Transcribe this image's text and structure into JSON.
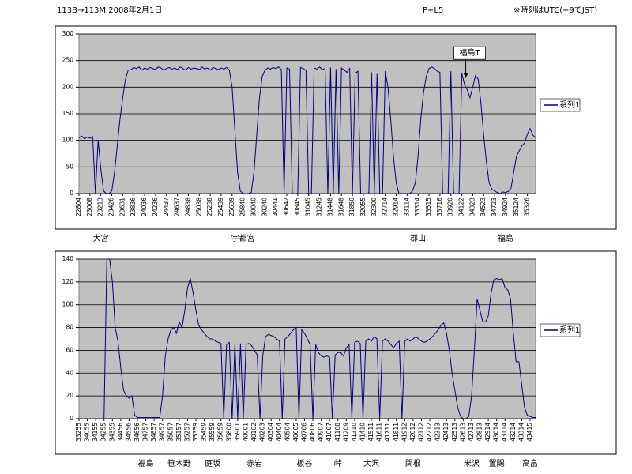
{
  "header": {
    "left": "113B→113M  2008年2月1日",
    "center": "P+L5",
    "right": "※時刻はUTC(+9でJST)"
  },
  "chart_data": [
    {
      "type": "line",
      "categories": [
        "22804",
        null,
        null,
        null,
        "23008",
        null,
        null,
        null,
        "23213",
        null,
        null,
        null,
        "23426",
        null,
        null,
        null,
        "23631",
        null,
        null,
        null,
        "23836",
        null,
        null,
        null,
        "24036",
        null,
        null,
        null,
        "24236",
        null,
        null,
        null,
        "24437",
        null,
        null,
        null,
        "24637",
        null,
        null,
        null,
        "24838",
        null,
        null,
        null,
        "25038",
        null,
        null,
        null,
        "25238",
        null,
        null,
        null,
        "25439",
        null,
        null,
        null,
        "25639",
        null,
        null,
        null,
        "25840",
        null,
        null,
        null,
        "30040",
        null,
        null,
        null,
        "30240",
        null,
        null,
        null,
        "30441",
        null,
        null,
        null,
        "30642",
        null,
        null,
        null,
        "30845",
        null,
        null,
        null,
        "31045",
        null,
        null,
        null,
        "31245",
        null,
        null,
        null,
        "31448",
        null,
        null,
        null,
        "31648",
        null,
        null,
        null,
        "31850",
        null,
        null,
        null,
        "32055",
        null,
        null,
        null,
        "32300",
        null,
        null,
        null,
        "32714",
        null,
        null,
        null,
        "32914",
        null,
        null,
        null,
        "33114",
        null,
        null,
        null,
        "33314",
        null,
        null,
        null,
        "33515",
        null,
        null,
        null,
        "33716",
        null,
        null,
        null,
        "33920",
        null,
        null,
        null,
        "34122",
        null,
        null,
        null,
        "34323",
        null,
        null,
        null,
        "34523",
        null,
        null,
        null,
        "34723",
        null,
        null,
        null,
        "34924",
        null,
        null,
        null,
        "35124",
        null,
        null,
        null,
        "35326",
        null,
        null,
        null
      ],
      "series": [
        {
          "name": "系列1",
          "color": "#000080",
          "values": [
            105,
            108,
            103,
            106,
            104,
            107,
            0,
            100,
            45,
            5,
            0,
            0,
            5,
            40,
            90,
            140,
            180,
            215,
            232,
            233,
            237,
            235,
            238,
            232,
            236,
            234,
            237,
            235,
            233,
            238,
            236,
            232,
            235,
            237,
            234,
            236,
            233,
            238,
            235,
            232,
            237,
            234,
            236,
            235,
            233,
            238,
            234,
            236,
            232,
            237,
            235,
            233,
            236,
            234,
            237,
            232,
            200,
            120,
            40,
            5,
            0,
            0,
            0,
            2,
            40,
            110,
            180,
            220,
            232,
            236,
            234,
            237,
            235,
            238,
            233,
            0,
            236,
            234,
            0,
            0,
            0,
            237,
            235,
            232,
            0,
            0,
            236,
            234,
            238,
            233,
            235,
            0,
            237,
            0,
            234,
            0,
            236,
            232,
            228,
            235,
            0,
            226,
            230,
            0,
            0,
            0,
            0,
            228,
            0,
            225,
            0,
            0,
            230,
            200,
            140,
            70,
            20,
            0,
            0,
            0,
            0,
            0,
            5,
            20,
            70,
            140,
            190,
            220,
            235,
            238,
            235,
            230,
            228,
            0,
            0,
            0,
            230,
            0,
            0,
            0,
            226,
            205,
            195,
            180,
            200,
            222,
            215,
            170,
            110,
            60,
            20,
            8,
            5,
            2,
            0,
            3,
            2,
            4,
            10,
            40,
            70,
            80,
            90,
            95,
            112,
            122,
            110,
            105
          ]
        }
      ],
      "ylim": [
        0,
        300
      ],
      "yticks": [
        0,
        50,
        100,
        150,
        200,
        250,
        300
      ],
      "grid": true,
      "legend": "right",
      "annotations": [
        {
          "text": "福島T",
          "category": "34122",
          "value": 215
        }
      ],
      "stations": [
        {
          "label": "大宮",
          "at": "23213"
        },
        {
          "label": "宇都宮",
          "at": "25840"
        },
        {
          "label": "郡山",
          "at": "33314"
        },
        {
          "label": "福島",
          "at": "34924"
        }
      ]
    },
    {
      "type": "line",
      "categories": [
        "33255",
        null,
        null,
        "34055",
        null,
        null,
        "34155",
        null,
        null,
        "34255",
        null,
        null,
        "34355",
        null,
        null,
        "34456",
        null,
        null,
        "34556",
        null,
        null,
        "34656",
        null,
        null,
        "34757",
        null,
        null,
        "34857",
        null,
        null,
        "34957",
        null,
        null,
        "35057",
        null,
        null,
        "35157",
        null,
        null,
        "35257",
        null,
        null,
        "35359",
        null,
        null,
        "35459",
        null,
        null,
        "35559",
        null,
        null,
        "35659",
        null,
        null,
        "35800",
        null,
        null,
        "35901",
        null,
        null,
        "40001",
        null,
        null,
        "40102",
        null,
        null,
        "40203",
        null,
        null,
        "40304",
        null,
        null,
        "40404",
        null,
        null,
        "40504",
        null,
        null,
        "40605",
        null,
        null,
        "40706",
        null,
        null,
        "40806",
        null,
        null,
        "40907",
        null,
        null,
        "41007",
        null,
        null,
        "41108",
        null,
        null,
        "41209",
        null,
        null,
        "41310",
        null,
        null,
        "41410",
        null,
        null,
        "41511",
        null,
        null,
        "41611",
        null,
        null,
        "41711",
        null,
        null,
        "41811",
        null,
        null,
        "41912",
        null,
        null,
        "42012",
        null,
        null,
        "42112",
        null,
        null,
        "42212",
        null,
        null,
        "42313",
        null,
        null,
        "42413",
        null,
        null,
        "42513",
        null,
        null,
        "42613",
        null,
        null,
        "42713",
        null,
        null,
        "42813",
        null,
        null,
        "42914",
        null,
        null,
        "43014",
        null,
        null,
        "43114",
        null,
        null,
        "43214",
        null,
        null,
        "43314",
        null,
        null,
        "43415",
        null,
        null
      ],
      "series": [
        {
          "name": "系列1",
          "color": "#000080",
          "values": [
            null,
            null,
            null,
            null,
            null,
            null,
            null,
            null,
            null,
            0,
            140,
            140,
            120,
            80,
            68,
            45,
            25,
            20,
            18,
            20,
            3,
            1,
            1,
            1,
            1,
            1,
            1,
            1,
            1,
            1,
            20,
            55,
            70,
            78,
            80,
            75,
            85,
            80,
            95,
            115,
            123,
            110,
            95,
            82,
            78,
            75,
            72,
            70,
            70,
            68,
            67,
            66,
            0,
            65,
            67,
            0,
            66,
            0,
            66,
            0,
            65,
            66,
            64,
            60,
            56,
            0,
            55,
            72,
            74,
            73,
            72,
            70,
            68,
            0,
            70,
            72,
            75,
            78,
            80,
            0,
            78,
            75,
            70,
            65,
            0,
            65,
            58,
            55,
            54,
            55,
            54,
            0,
            56,
            58,
            58,
            55,
            62,
            65,
            0,
            67,
            68,
            66,
            0,
            68,
            70,
            68,
            72,
            70,
            0,
            68,
            70,
            68,
            65,
            62,
            66,
            68,
            0,
            68,
            70,
            68,
            70,
            72,
            70,
            68,
            67,
            68,
            70,
            72,
            75,
            78,
            82,
            84,
            75,
            60,
            40,
            25,
            10,
            2,
            0,
            0,
            2,
            20,
            60,
            105,
            95,
            85,
            85,
            90,
            110,
            122,
            123,
            122,
            123,
            115,
            113,
            105,
            75,
            50,
            50,
            30,
            10,
            3,
            2,
            1,
            1
          ]
        }
      ],
      "ylim": [
        0,
        140
      ],
      "yticks": [
        0,
        20,
        40,
        60,
        80,
        100,
        120,
        140
      ],
      "grid": true,
      "legend": "right",
      "stations": [
        {
          "label": "福島",
          "at": "34757"
        },
        {
          "label": "笹木野",
          "at": "35157"
        },
        {
          "label": "庭坂",
          "at": "35559"
        },
        {
          "label": "赤岩",
          "at": "40102"
        },
        {
          "label": "板谷",
          "at": "40706"
        },
        {
          "label": "峠",
          "at": "41108"
        },
        {
          "label": "大沢",
          "at": "41511"
        },
        {
          "label": "関根",
          "at": "42012"
        },
        {
          "label": "米沢",
          "at": "42713"
        },
        {
          "label": "置賜",
          "at": "43014"
        },
        {
          "label": "高畠",
          "at": "43415"
        }
      ]
    }
  ]
}
